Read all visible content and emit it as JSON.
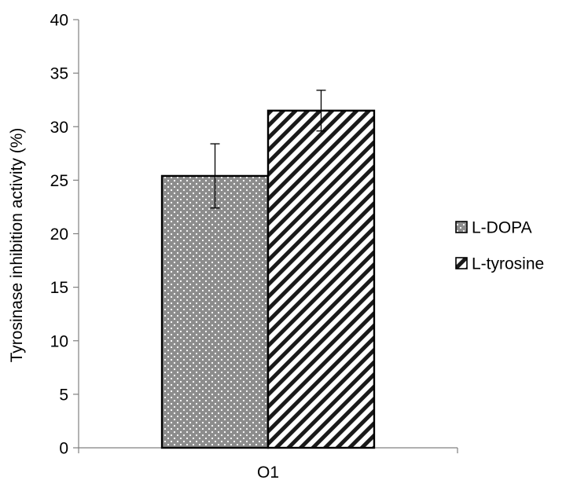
{
  "chart_data": {
    "type": "bar",
    "categories": [
      "O1"
    ],
    "series": [
      {
        "name": "L-DOPA",
        "values": [
          25.4
        ],
        "error": [
          3.0
        ],
        "pattern": "dots"
      },
      {
        "name": "L-tyrosine",
        "values": [
          31.5
        ],
        "error": [
          1.9
        ],
        "pattern": "diagonal-stripes"
      }
    ],
    "title": "",
    "xlabel": "",
    "ylabel": "Tyrosinase inhibition activity (%)",
    "ylim": [
      0,
      40
    ],
    "yticks": [
      "0",
      "5",
      "10",
      "15",
      "20",
      "25",
      "30",
      "35",
      "40"
    ],
    "grid": false,
    "legend_position": "right"
  }
}
